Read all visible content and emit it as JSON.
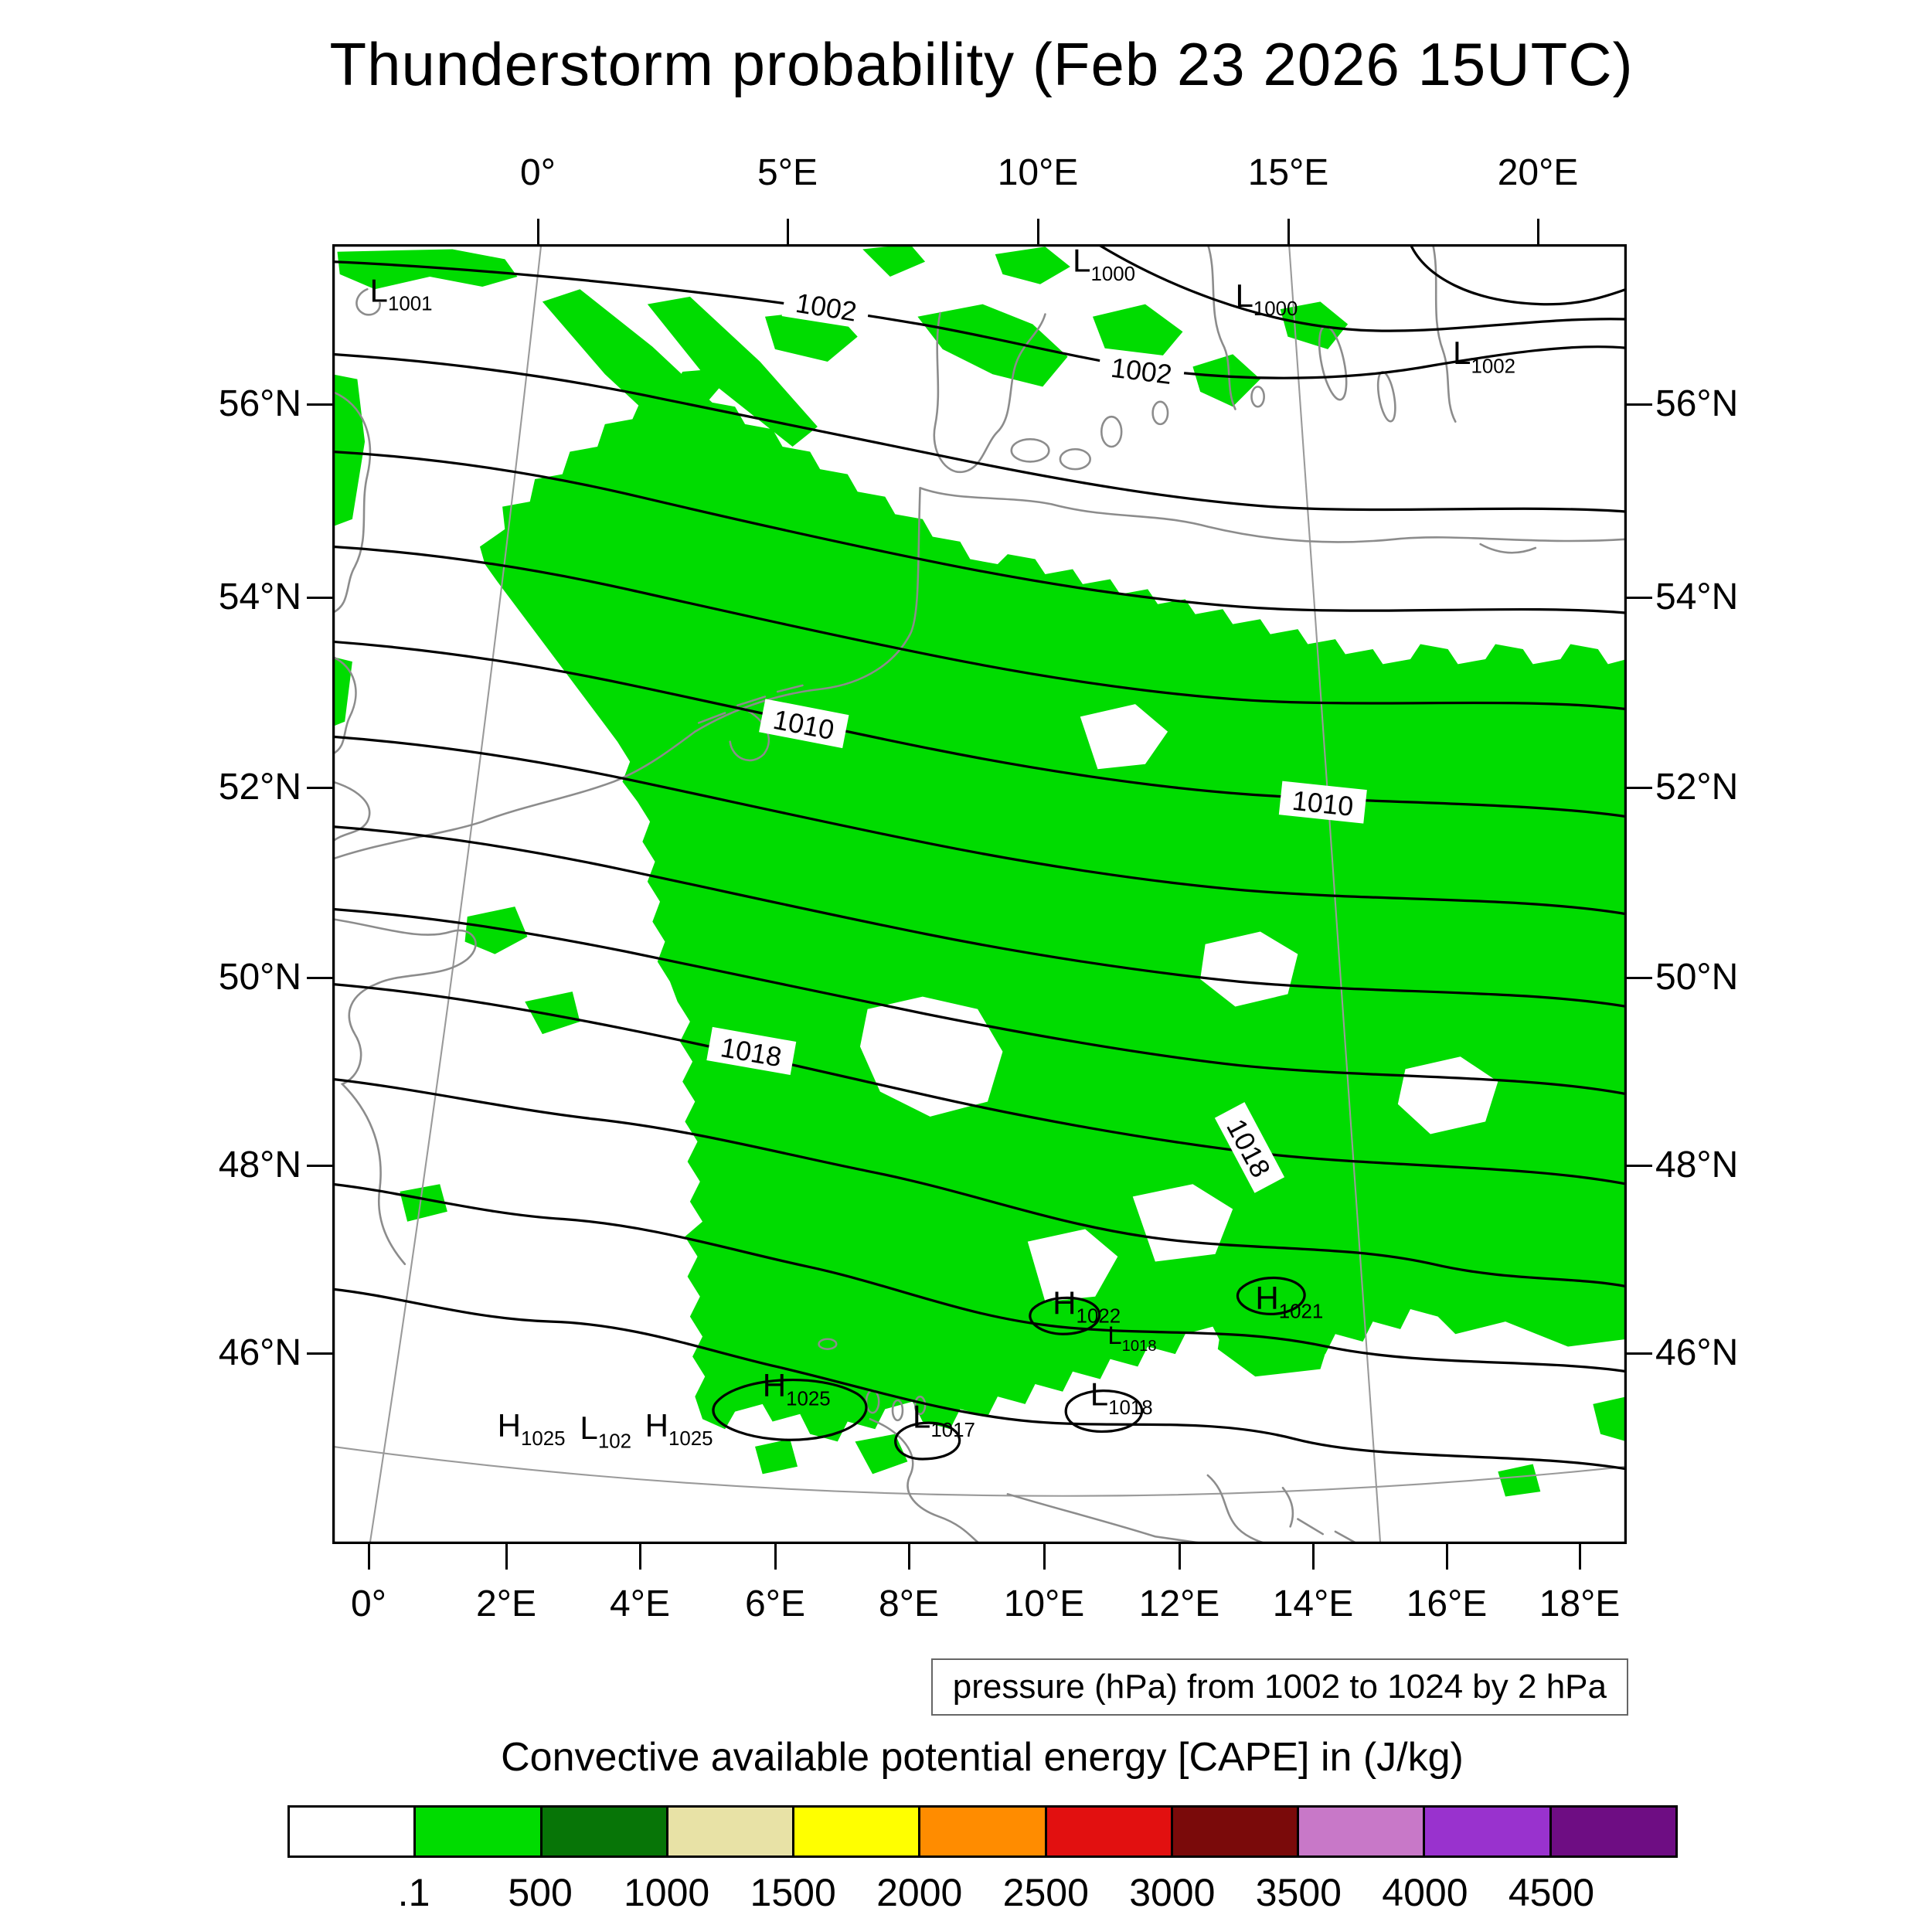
{
  "title": "Thunderstorm probability (Feb 23 2026 15UTC)",
  "axes": {
    "top": [
      "0°",
      "5°E",
      "10°E",
      "15°E",
      "20°E"
    ],
    "bottom": [
      "0°",
      "2°E",
      "4°E",
      "6°E",
      "8°E",
      "10°E",
      "12°E",
      "14°E",
      "16°E",
      "18°E"
    ],
    "left": [
      "56°N",
      "54°N",
      "52°N",
      "50°N",
      "48°N",
      "46°N"
    ],
    "right": [
      "56°N",
      "54°N",
      "52°N",
      "50°N",
      "48°N",
      "46°N"
    ]
  },
  "isobar_labels": [
    "1002",
    "1002",
    "1010",
    "1010",
    "1018",
    "1018"
  ],
  "pressure_centers": [
    {
      "letter": "L",
      "value": "1001"
    },
    {
      "letter": "L",
      "value": "1000"
    },
    {
      "letter": "L",
      "value": "1000"
    },
    {
      "letter": "L",
      "value": "1002"
    },
    {
      "letter": "H",
      "value": "1022"
    },
    {
      "letter": "L",
      "value": "1018"
    },
    {
      "letter": "H",
      "value": "1021"
    },
    {
      "letter": "H",
      "value": "1025"
    },
    {
      "letter": "H",
      "value": "1025"
    },
    {
      "letter": "L",
      "value": "102"
    },
    {
      "letter": "H",
      "value": "1025"
    },
    {
      "letter": "L",
      "value": "1017"
    },
    {
      "letter": "L",
      "value": "1018"
    }
  ],
  "caption": "pressure (hPa) from 1002 to 1024 by 2 hPa",
  "colorbar": {
    "title": "Convective available potential energy [CAPE] in (J/kg)",
    "colors": [
      "#FFFFFF",
      "#00DC00",
      "#077507",
      "#E8E2A6",
      "#FFFF00",
      "#FF8C00",
      "#E21010",
      "#7A0A0A",
      "#C878C8",
      "#9932CE",
      "#6E0D83"
    ],
    "tick_labels": [
      ".1",
      "500",
      "1000",
      "1500",
      "2000",
      "2500",
      "3000",
      "3500",
      "4000",
      "4500"
    ]
  },
  "chart_data": {
    "type": "heatmap",
    "title": "Thunderstorm probability (Feb 23 2026 15UTC)",
    "valid_time": "Feb 23 2026 15UTC",
    "region": {
      "lon_range": [
        "0°",
        "20°E"
      ],
      "lat_range": [
        "~45°N",
        "~57.5°N"
      ]
    },
    "shading": {
      "variable": "Convective available potential energy [CAPE] in (J/kg)",
      "levels": [
        0.1,
        500,
        1000,
        1500,
        2000,
        2500,
        3000,
        3500,
        4000,
        4500
      ],
      "colors": [
        "#FFFFFF",
        "#00DC00",
        "#077507",
        "#E8E2A6",
        "#FFFF00",
        "#FF8C00",
        "#E21010",
        "#7A0A0A",
        "#C878C8",
        "#9932CE",
        "#6E0D83"
      ],
      "observed_values": "Only the 0.1–500 J/kg band (bright green) is present, covering a broad swath of central Europe from roughly 2°E to 19°E between about 46°N and 54°N, with scattered patches over the North Sea, Denmark and the far northwest"
    },
    "contours": {
      "variable": "pressure (hPa)",
      "from": 1002,
      "to": 1024,
      "by": 2,
      "levels": [
        1002,
        1004,
        1006,
        1008,
        1010,
        1012,
        1014,
        1016,
        1018,
        1020,
        1022,
        1024
      ],
      "labeled_values": [
        1002,
        1010,
        1018
      ],
      "orientation": "isobars run roughly WSW–ENE, pressure increasing from ~1000 hPa in the north to ~1025 hPa in the south"
    },
    "pressure_centers": [
      {
        "type": "L",
        "value": "1001",
        "approx_location": "0.5°E, 56.6°N"
      },
      {
        "type": "L",
        "value": "1000",
        "approx_location": "9.5°E, 57.2°N"
      },
      {
        "type": "L",
        "value": "1000",
        "approx_location": "12°E, 56.9°N"
      },
      {
        "type": "L",
        "value": "1002",
        "approx_location": "15.5°E, 56.3°N"
      },
      {
        "type": "H",
        "value": "1022",
        "approx_location": "9.8°E, 46.6°N"
      },
      {
        "type": "L",
        "value": "1018",
        "approx_location": "10.3°E, 46.4°N"
      },
      {
        "type": "H",
        "value": "1021",
        "approx_location": "12.8°E, 46.6°N"
      },
      {
        "type": "H",
        "value": "1025",
        "approx_location": "6°E, 45.9°N"
      },
      {
        "type": "H",
        "value": "1025",
        "approx_location": "2.5°E, 45.6°N"
      },
      {
        "type": "L",
        "value": "102",
        "approx_location": "3.6°E, 45.6°N (label truncated by overlap)"
      },
      {
        "type": "H",
        "value": "1025",
        "approx_location": "4.4°E, 45.6°N"
      },
      {
        "type": "L",
        "value": "1017",
        "approx_location": "7.8°E, 45.7°N"
      },
      {
        "type": "L",
        "value": "1018",
        "approx_location": "10.2°E, 45.9°N"
      }
    ],
    "legend_position": "horizontal colorbar below map",
    "grid": "curved gray graticule lines (meridians and one parallel) visible"
  }
}
